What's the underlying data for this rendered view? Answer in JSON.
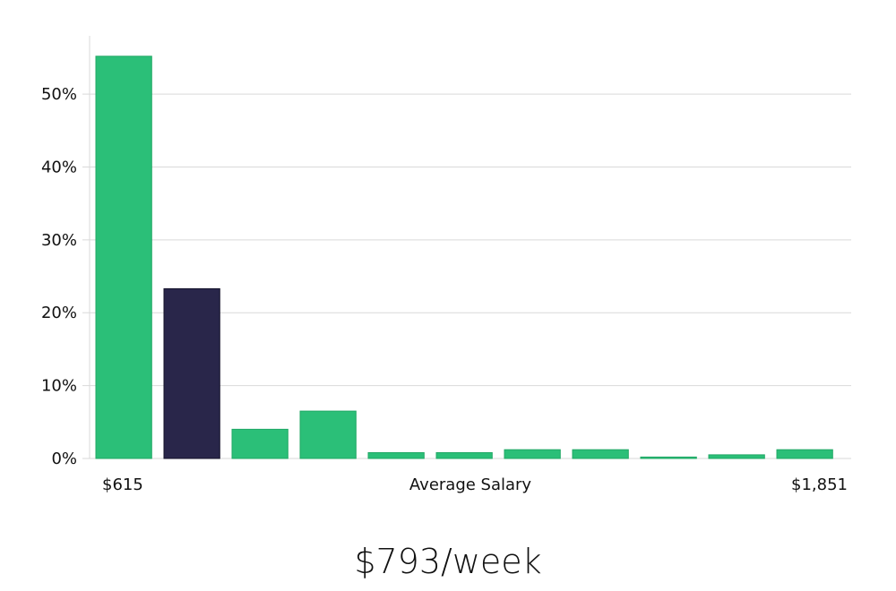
{
  "chart_data": {
    "type": "bar",
    "title": "",
    "ylabel": "",
    "xlabel": "Average Salary",
    "x_start_label": "$615",
    "x_end_label": "$1,851",
    "ylim": [
      0,
      58
    ],
    "y_ticks": [
      0,
      10,
      20,
      30,
      40,
      50
    ],
    "y_tick_labels": [
      "0%",
      "10%",
      "20%",
      "30%",
      "40%",
      "50%"
    ],
    "grid": true,
    "values": [
      55.2,
      23.3,
      4.0,
      6.5,
      0.8,
      0.8,
      1.2,
      1.2,
      0.2,
      0.5,
      1.2
    ],
    "highlight_index": 1,
    "colors": {
      "bar": "#2bbf78",
      "bar_edge": "#22a866",
      "highlight": "#29264a",
      "highlight_edge": "#15132b"
    }
  },
  "headline": "$793/week"
}
